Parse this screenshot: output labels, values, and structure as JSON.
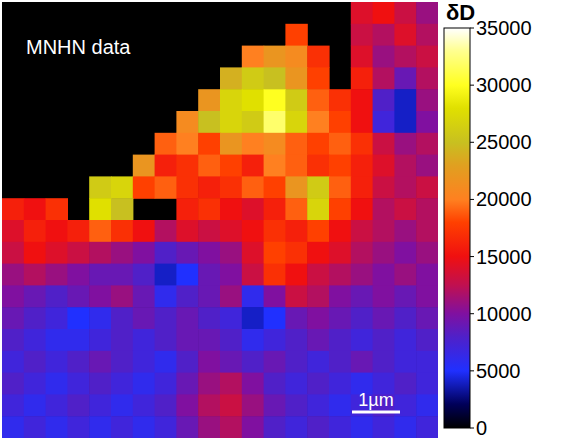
{
  "chart_data": {
    "type": "heatmap",
    "tick_labels": false,
    "annotations": [
      "MNHN data",
      "1µm"
    ],
    "colorbar": {
      "label": "δD",
      "range": [
        0,
        35000
      ],
      "ticks": [
        0,
        5000,
        10000,
        15000,
        20000,
        25000,
        30000,
        35000
      ]
    },
    "cells": [
      [
        null,
        null,
        null,
        null,
        null,
        null,
        null,
        null,
        null,
        null,
        null,
        null,
        null,
        null,
        null,
        null,
        14000,
        15000,
        13000,
        11000
      ],
      [
        null,
        null,
        null,
        null,
        null,
        null,
        null,
        null,
        null,
        null,
        null,
        null,
        null,
        18000,
        null,
        null,
        13000,
        12000,
        14000,
        12000
      ],
      [
        null,
        null,
        null,
        null,
        null,
        null,
        null,
        null,
        null,
        null,
        null,
        20000,
        22000,
        21000,
        17000,
        null,
        14000,
        11000,
        12000,
        13000
      ],
      [
        null,
        null,
        null,
        null,
        null,
        null,
        null,
        null,
        null,
        null,
        24000,
        26000,
        25000,
        22000,
        18000,
        null,
        16000,
        12000,
        9000,
        12000
      ],
      [
        null,
        null,
        null,
        null,
        null,
        null,
        null,
        null,
        null,
        22000,
        27000,
        28000,
        30000,
        26000,
        19000,
        17000,
        15000,
        8000,
        4000,
        11000
      ],
      [
        null,
        null,
        null,
        null,
        null,
        null,
        null,
        null,
        21000,
        25000,
        27000,
        26000,
        32000,
        27000,
        20000,
        18000,
        15000,
        7000,
        4000,
        10000
      ],
      [
        null,
        null,
        null,
        null,
        null,
        null,
        null,
        19000,
        20000,
        18000,
        22000,
        20000,
        21000,
        19000,
        18000,
        19000,
        17000,
        13000,
        11000,
        12000
      ],
      [
        null,
        null,
        null,
        null,
        null,
        null,
        22000,
        16000,
        17000,
        19000,
        18000,
        16000,
        20000,
        19000,
        17000,
        18000,
        16000,
        14000,
        12000,
        11000
      ],
      [
        null,
        null,
        null,
        null,
        26000,
        27000,
        18000,
        19000,
        17000,
        16000,
        17000,
        19000,
        18000,
        22000,
        26000,
        19000,
        16000,
        13000,
        12000,
        13000
      ],
      [
        16000,
        15000,
        17000,
        null,
        28000,
        25000,
        null,
        null,
        16000,
        17000,
        15000,
        14000,
        16000,
        19000,
        27000,
        18000,
        15000,
        12000,
        13000,
        12000
      ],
      [
        14000,
        16000,
        15000,
        16000,
        19000,
        17000,
        15000,
        12000,
        14000,
        13000,
        14000,
        15000,
        17000,
        16000,
        18000,
        15000,
        13000,
        12000,
        11000,
        12000
      ],
      [
        13000,
        15000,
        14000,
        13000,
        12000,
        11000,
        10000,
        8000,
        9000,
        10000,
        11000,
        14000,
        18000,
        17000,
        15000,
        14000,
        12000,
        11000,
        10000,
        11000
      ],
      [
        11000,
        12000,
        11000,
        10000,
        9000,
        9000,
        8000,
        4000,
        5000,
        9000,
        10000,
        13000,
        17000,
        15000,
        13000,
        12000,
        11000,
        10000,
        11000,
        10000
      ],
      [
        10000,
        9000,
        8000,
        9000,
        10000,
        11000,
        9000,
        6000,
        8000,
        9000,
        11000,
        6000,
        10000,
        13000,
        12000,
        10000,
        9000,
        10000,
        9000,
        10000
      ],
      [
        9000,
        8000,
        7000,
        5000,
        6000,
        8000,
        9000,
        8000,
        9000,
        8000,
        7000,
        4000,
        5000,
        9000,
        10000,
        9000,
        8000,
        9000,
        8000,
        9000
      ],
      [
        8000,
        7000,
        6000,
        6000,
        7000,
        8000,
        7000,
        8000,
        9000,
        9000,
        8000,
        6000,
        7000,
        8000,
        9000,
        8000,
        7000,
        8000,
        7000,
        8000
      ],
      [
        7000,
        8000,
        7000,
        8000,
        9000,
        8000,
        7000,
        6000,
        8000,
        10000,
        9000,
        8000,
        9000,
        8000,
        7000,
        8000,
        9000,
        8000,
        7000,
        7000
      ],
      [
        8000,
        7000,
        6000,
        7000,
        8000,
        7000,
        6000,
        7000,
        9000,
        11000,
        12000,
        10000,
        8000,
        7000,
        8000,
        7000,
        6000,
        7000,
        8000,
        7000
      ],
      [
        7000,
        6000,
        7000,
        8000,
        7000,
        6000,
        7000,
        8000,
        10000,
        12000,
        13000,
        11000,
        9000,
        8000,
        7000,
        6000,
        7000,
        8000,
        7000,
        6000
      ],
      [
        6000,
        7000,
        6000,
        7000,
        6000,
        7000,
        6000,
        7000,
        9000,
        11000,
        12000,
        10000,
        8000,
        7000,
        8000,
        7000,
        6000,
        7000,
        6000,
        7000
      ]
    ]
  }
}
